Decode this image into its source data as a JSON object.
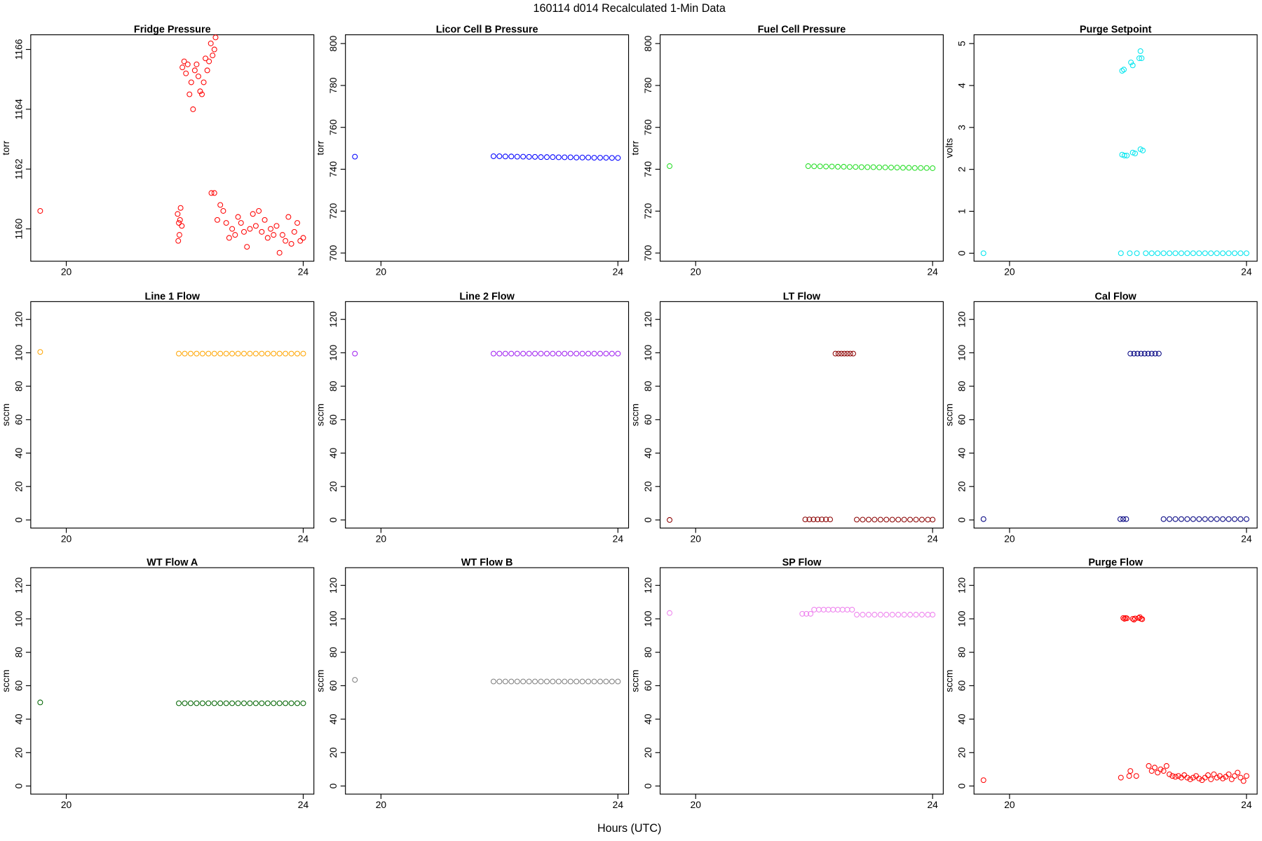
{
  "title": "160114   d014   Recalculated 1-Min Data",
  "xlabel": "Hours (UTC)",
  "chart_data": [
    {
      "type": "scatter",
      "title": "Fridge Pressure",
      "ylabel": "torr",
      "color": "#ff0000",
      "x": [
        19.56,
        21.88,
        21.89,
        21.9,
        21.91,
        21.92,
        21.93,
        21.95,
        21.96,
        21.99,
        22.02,
        22.05,
        22.08,
        22.11,
        22.14,
        22.17,
        22.2,
        22.23,
        22.26,
        22.29,
        22.32,
        22.35,
        22.38,
        22.41,
        22.44,
        22.47,
        22.5,
        22.52,
        22.45,
        22.5,
        22.55,
        22.6,
        22.65,
        22.7,
        22.75,
        22.8,
        22.85,
        22.9,
        22.95,
        23.0,
        23.05,
        23.1,
        23.15,
        23.2,
        23.25,
        23.3,
        23.35,
        23.4,
        23.45,
        23.5,
        23.55,
        23.6,
        23.65,
        23.7,
        23.75,
        23.8,
        23.85,
        23.9,
        23.95,
        24.0
      ],
      "values": [
        1160.6,
        1160.5,
        1159.6,
        1160.2,
        1159.8,
        1160.3,
        1160.7,
        1160.1,
        1165.4,
        1165.6,
        1165.2,
        1165.5,
        1164.5,
        1164.9,
        1164.0,
        1165.3,
        1165.5,
        1165.1,
        1164.6,
        1164.5,
        1164.9,
        1165.7,
        1165.3,
        1165.6,
        1166.2,
        1165.8,
        1166.0,
        1166.4,
        1161.2,
        1161.2,
        1160.3,
        1160.8,
        1160.6,
        1160.2,
        1159.7,
        1160.0,
        1159.8,
        1160.4,
        1160.2,
        1159.9,
        1159.4,
        1160.0,
        1160.5,
        1160.1,
        1160.6,
        1159.9,
        1160.3,
        1159.7,
        1160.0,
        1159.8,
        1160.1,
        1159.2,
        1159.8,
        1159.6,
        1160.4,
        1159.5,
        1159.9,
        1160.2,
        1159.6,
        1159.7
      ],
      "xlim": [
        19.4,
        24.18
      ],
      "xticks": [
        20,
        24
      ],
      "ylim": [
        1158.92,
        1166.49
      ],
      "yticks": [
        1160,
        1162,
        1164,
        1166
      ]
    },
    {
      "type": "scatter",
      "title": "Licor Cell B Pressure",
      "ylabel": "torr",
      "color": "#0000ff",
      "x": [
        19.56,
        21.9,
        22.0,
        22.1,
        22.2,
        22.3,
        22.4,
        22.5,
        22.6,
        22.7,
        22.8,
        22.9,
        23.0,
        23.1,
        23.2,
        23.3,
        23.4,
        23.5,
        23.6,
        23.7,
        23.8,
        23.9,
        24.0
      ],
      "values": [
        746,
        746.2,
        746.2,
        746.1,
        746.1,
        746.0,
        746.0,
        745.9,
        745.9,
        745.8,
        745.8,
        745.8,
        745.7,
        745.7,
        745.7,
        745.6,
        745.6,
        745.6,
        745.5,
        745.5,
        745.5,
        745.4,
        745.4
      ],
      "xlim": [
        19.4,
        24.18
      ],
      "xticks": [
        20,
        24
      ],
      "ylim": [
        696.1,
        804.2
      ],
      "yticks": [
        700,
        720,
        740,
        760,
        780,
        800
      ]
    },
    {
      "type": "scatter",
      "title": "Fuel Cell Pressure",
      "ylabel": "torr",
      "color": "#22dd22",
      "x": [
        19.56,
        21.9,
        22.0,
        22.1,
        22.2,
        22.3,
        22.4,
        22.5,
        22.6,
        22.7,
        22.8,
        22.9,
        23.0,
        23.1,
        23.2,
        23.3,
        23.4,
        23.5,
        23.6,
        23.7,
        23.8,
        23.9,
        24.0
      ],
      "values": [
        741.5,
        741.5,
        741.4,
        741.4,
        741.3,
        741.3,
        741.2,
        741.2,
        741.1,
        741.1,
        741.0,
        741.0,
        741.0,
        740.9,
        740.9,
        740.8,
        740.8,
        740.7,
        740.7,
        740.6,
        740.6,
        740.6,
        740.5
      ],
      "xlim": [
        19.4,
        24.18
      ],
      "xticks": [
        20,
        24
      ],
      "ylim": [
        696.1,
        804.2
      ],
      "yticks": [
        700,
        720,
        740,
        760,
        780,
        800
      ]
    },
    {
      "type": "scatter",
      "title": "Purge Setpoint",
      "ylabel": "volts",
      "color": "#00e5ee",
      "x": [
        19.56,
        21.88,
        21.9,
        21.93,
        21.9,
        21.94,
        21.98,
        22.03,
        22.05,
        22.08,
        22.08,
        22.12,
        22.15,
        22.19,
        22.21,
        22.23,
        22.21,
        22.25,
        22.3,
        22.4,
        22.5,
        22.6,
        22.7,
        22.8,
        22.9,
        23.0,
        23.1,
        23.2,
        23.3,
        23.4,
        23.5,
        23.6,
        23.7,
        23.8,
        23.9,
        24.0
      ],
      "values": [
        0,
        0,
        4.35,
        4.38,
        2.35,
        2.33,
        2.33,
        0,
        4.55,
        4.48,
        2.4,
        2.38,
        0,
        4.65,
        4.82,
        4.65,
        2.48,
        2.45,
        0,
        0,
        0,
        0,
        0,
        0,
        0,
        0,
        0,
        0,
        0,
        0,
        0,
        0,
        0,
        0,
        0,
        0
      ],
      "xlim": [
        19.4,
        24.18
      ],
      "xticks": [
        20,
        24
      ],
      "ylim": [
        -0.19,
        5.21
      ],
      "yticks": [
        0,
        1,
        2,
        3,
        4,
        5
      ]
    },
    {
      "type": "scatter",
      "title": "Line 1 Flow",
      "ylabel": "sccm",
      "color": "#ffa500",
      "x": [
        19.56,
        21.9,
        22.0,
        22.1,
        22.2,
        22.3,
        22.4,
        22.5,
        22.6,
        22.7,
        22.8,
        22.9,
        23.0,
        23.1,
        23.2,
        23.3,
        23.4,
        23.5,
        23.6,
        23.7,
        23.8,
        23.9,
        24.0
      ],
      "values": [
        100.5,
        99.5,
        99.5,
        99.5,
        99.5,
        99.5,
        99.5,
        99.5,
        99.5,
        99.5,
        99.5,
        99.5,
        99.5,
        99.5,
        99.5,
        99.5,
        99.5,
        99.5,
        99.5,
        99.5,
        99.5,
        99.5,
        99.5
      ],
      "xlim": [
        19.4,
        24.18
      ],
      "xticks": [
        20,
        24
      ],
      "ylim": [
        -4.84,
        130.6
      ],
      "yticks": [
        0,
        20,
        40,
        60,
        80,
        100,
        120
      ]
    },
    {
      "type": "scatter",
      "title": "Line 2 Flow",
      "ylabel": "sccm",
      "color": "#a020f0",
      "x": [
        19.56,
        21.9,
        22.0,
        22.1,
        22.2,
        22.3,
        22.4,
        22.5,
        22.6,
        22.7,
        22.8,
        22.9,
        23.0,
        23.1,
        23.2,
        23.3,
        23.4,
        23.5,
        23.6,
        23.7,
        23.8,
        23.9,
        24.0
      ],
      "values": [
        99.5,
        99.5,
        99.5,
        99.5,
        99.5,
        99.5,
        99.5,
        99.5,
        99.5,
        99.5,
        99.5,
        99.5,
        99.5,
        99.5,
        99.5,
        99.5,
        99.5,
        99.5,
        99.5,
        99.5,
        99.5,
        99.5,
        99.5
      ],
      "xlim": [
        19.4,
        24.18
      ],
      "xticks": [
        20,
        24
      ],
      "ylim": [
        -4.84,
        130.6
      ],
      "yticks": [
        0,
        20,
        40,
        60,
        80,
        100,
        120
      ]
    },
    {
      "type": "scatter",
      "title": "LT Flow",
      "ylabel": "sccm",
      "color": "#8b0000",
      "x": [
        19.56,
        21.85,
        21.92,
        21.99,
        22.06,
        22.13,
        22.2,
        22.27,
        22.36,
        22.41,
        22.46,
        22.51,
        22.56,
        22.61,
        22.66,
        22.72,
        22.82,
        22.92,
        23.02,
        23.12,
        23.22,
        23.32,
        23.42,
        23.52,
        23.62,
        23.72,
        23.82,
        23.92,
        24.0
      ],
      "values": [
        0,
        0.3,
        0.3,
        0.3,
        0.3,
        0.3,
        0.3,
        0.3,
        99.5,
        99.5,
        99.5,
        99.5,
        99.5,
        99.5,
        99.5,
        0.2,
        0.2,
        0.2,
        0.2,
        0.2,
        0.2,
        0.2,
        0.2,
        0.2,
        0.2,
        0.2,
        0.2,
        0.2,
        0.2
      ],
      "xlim": [
        19.4,
        24.18
      ],
      "xticks": [
        20,
        24
      ],
      "ylim": [
        -4.84,
        130.6
      ],
      "yticks": [
        0,
        20,
        40,
        60,
        80,
        100,
        120
      ]
    },
    {
      "type": "scatter",
      "title": "Cal Flow",
      "ylabel": "sccm",
      "color": "#000080",
      "x": [
        19.56,
        21.87,
        21.92,
        21.97,
        22.04,
        22.1,
        22.16,
        22.22,
        22.28,
        22.34,
        22.4,
        22.46,
        22.52,
        22.6,
        22.7,
        22.8,
        22.9,
        23.0,
        23.1,
        23.2,
        23.3,
        23.4,
        23.5,
        23.6,
        23.7,
        23.8,
        23.9,
        24.0
      ],
      "values": [
        0.5,
        0.5,
        0.5,
        0.5,
        99.5,
        99.5,
        99.5,
        99.5,
        99.5,
        99.5,
        99.5,
        99.5,
        99.5,
        0.5,
        0.5,
        0.5,
        0.5,
        0.5,
        0.5,
        0.5,
        0.5,
        0.5,
        0.5,
        0.5,
        0.5,
        0.5,
        0.5,
        0.5
      ],
      "xlim": [
        19.4,
        24.18
      ],
      "xticks": [
        20,
        24
      ],
      "ylim": [
        -4.84,
        130.6
      ],
      "yticks": [
        0,
        20,
        40,
        60,
        80,
        100,
        120
      ]
    },
    {
      "type": "scatter",
      "title": "WT Flow A",
      "ylabel": "sccm",
      "color": "#006400",
      "x": [
        19.56,
        21.9,
        22.0,
        22.1,
        22.2,
        22.3,
        22.4,
        22.5,
        22.6,
        22.7,
        22.8,
        22.9,
        23.0,
        23.1,
        23.2,
        23.3,
        23.4,
        23.5,
        23.6,
        23.7,
        23.8,
        23.9,
        24.0
      ],
      "values": [
        50,
        49.5,
        49.5,
        49.5,
        49.5,
        49.5,
        49.5,
        49.5,
        49.5,
        49.5,
        49.5,
        49.5,
        49.5,
        49.5,
        49.5,
        49.5,
        49.5,
        49.5,
        49.5,
        49.5,
        49.5,
        49.5,
        49.5
      ],
      "xlim": [
        19.4,
        24.18
      ],
      "xticks": [
        20,
        24
      ],
      "ylim": [
        -4.84,
        130.6
      ],
      "yticks": [
        0,
        20,
        40,
        60,
        80,
        100,
        120
      ]
    },
    {
      "type": "scatter",
      "title": "WT Flow B",
      "ylabel": "sccm",
      "color": "#808080",
      "x": [
        19.56,
        21.9,
        22.0,
        22.1,
        22.2,
        22.3,
        22.4,
        22.5,
        22.6,
        22.7,
        22.8,
        22.9,
        23.0,
        23.1,
        23.2,
        23.3,
        23.4,
        23.5,
        23.6,
        23.7,
        23.8,
        23.9,
        24.0
      ],
      "values": [
        63.5,
        62.5,
        62.5,
        62.5,
        62.5,
        62.5,
        62.5,
        62.5,
        62.5,
        62.5,
        62.5,
        62.5,
        62.5,
        62.5,
        62.5,
        62.5,
        62.5,
        62.5,
        62.5,
        62.5,
        62.5,
        62.5,
        62.5
      ],
      "xlim": [
        19.4,
        24.18
      ],
      "xticks": [
        20,
        24
      ],
      "ylim": [
        -4.84,
        130.6
      ],
      "yticks": [
        0,
        20,
        40,
        60,
        80,
        100,
        120
      ]
    },
    {
      "type": "scatter",
      "title": "SP Flow",
      "ylabel": "sccm",
      "color": "#ee82ee",
      "x": [
        19.56,
        21.8,
        21.87,
        21.94,
        22.0,
        22.08,
        22.16,
        22.24,
        22.32,
        22.4,
        22.48,
        22.56,
        22.64,
        22.72,
        22.82,
        22.92,
        23.02,
        23.12,
        23.22,
        23.32,
        23.42,
        23.52,
        23.62,
        23.72,
        23.82,
        23.92,
        24.0
      ],
      "values": [
        103.5,
        103,
        103,
        103,
        105.5,
        105.5,
        105.5,
        105.5,
        105.5,
        105.5,
        105.5,
        105.5,
        105.5,
        102.5,
        102.5,
        102.5,
        102.5,
        102.5,
        102.5,
        102.5,
        102.5,
        102.5,
        102.5,
        102.5,
        102.5,
        102.5,
        102.5
      ],
      "xlim": [
        19.4,
        24.18
      ],
      "xticks": [
        20,
        24
      ],
      "ylim": [
        -4.84,
        130.6
      ],
      "yticks": [
        0,
        20,
        40,
        60,
        80,
        100,
        120
      ]
    },
    {
      "type": "scatter",
      "title": "Purge Flow",
      "ylabel": "sccm",
      "color": "#ff0000",
      "x": [
        19.56,
        21.88,
        21.92,
        21.94,
        21.96,
        21.98,
        22.02,
        22.04,
        22.08,
        22.1,
        22.12,
        22.14,
        22.18,
        22.2,
        22.22,
        22.24,
        22.35,
        22.4,
        22.45,
        22.5,
        22.55,
        22.6,
        22.65,
        22.7,
        22.75,
        22.8,
        22.85,
        22.9,
        22.95,
        23.0,
        23.05,
        23.1,
        23.15,
        23.2,
        23.25,
        23.3,
        23.35,
        23.4,
        23.45,
        23.5,
        23.55,
        23.6,
        23.65,
        23.7,
        23.75,
        23.8,
        23.85,
        23.9,
        23.95,
        24.0
      ],
      "values": [
        3.5,
        5.0,
        100.5,
        100.0,
        100.5,
        100.3,
        6.0,
        9.0,
        100.0,
        99.5,
        100.2,
        6.0,
        100.5,
        101.0,
        100.0,
        99.8,
        12,
        9,
        11,
        8,
        10,
        9,
        12,
        7,
        6,
        5.5,
        6,
        5,
        6.5,
        5,
        4,
        5,
        6,
        4.5,
        3.5,
        5,
        6.5,
        4,
        7,
        5,
        6,
        4.5,
        5.5,
        7,
        4,
        6,
        8,
        5,
        3,
        6
      ],
      "xlim": [
        19.4,
        24.18
      ],
      "xticks": [
        20,
        24
      ],
      "ylim": [
        -4.84,
        130.6
      ],
      "yticks": [
        0,
        20,
        40,
        60,
        80,
        100,
        120
      ]
    }
  ]
}
